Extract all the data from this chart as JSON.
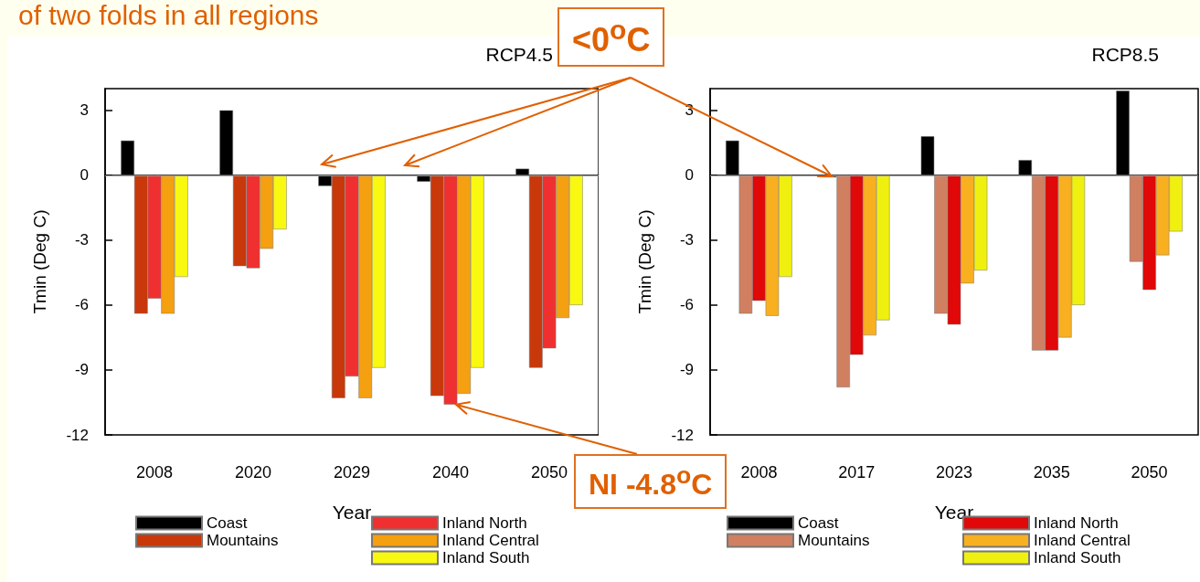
{
  "chart_data": [
    {
      "type": "bar",
      "title": "RCP4.5",
      "xlabel": "Year",
      "ylabel": "Tmin (Deg C)",
      "categories": [
        "2008",
        "2020",
        "2029",
        "2040",
        "2050"
      ],
      "series": [
        {
          "name": "Coast",
          "color": "#000000",
          "values": [
            1.6,
            3.0,
            -0.5,
            -0.3,
            0.3
          ]
        },
        {
          "name": "Mountains",
          "color": "#c8380a",
          "values": [
            -6.4,
            -4.2,
            -10.3,
            -10.2,
            -8.9
          ]
        },
        {
          "name": "Inland North",
          "color": "#f03030",
          "values": [
            -5.7,
            -4.3,
            -9.3,
            -10.6,
            -8.0
          ]
        },
        {
          "name": "Inland Central",
          "color": "#f5a010",
          "values": [
            -6.4,
            -3.4,
            -10.3,
            -10.1,
            -6.6
          ]
        },
        {
          "name": "Inland South",
          "color": "#f8f810",
          "values": [
            -4.7,
            -2.5,
            -8.9,
            -8.9,
            -6.0
          ]
        }
      ],
      "ylim": [
        -12,
        4
      ],
      "yticks": [
        -12,
        -9,
        -6,
        -3,
        0,
        3
      ],
      "ref_lines": [
        {
          "axis": "y",
          "value": 0,
          "color": "#999999"
        }
      ],
      "legend": "bottom",
      "annotations": [
        "of two folds in all regions",
        "<0$^{o}$C",
        {
          "text": "NI -4.8$^{o}$C",
          "x": "2040",
          "y": -10.6
        }
      ]
    },
    {
      "type": "bar",
      "title": "RCP8.5",
      "xlabel": "Year",
      "ylabel": "Tmin (Deg C)",
      "categories": [
        "2008",
        "2017",
        "2023",
        "2035",
        "2050"
      ],
      "series": [
        {
          "name": "Coast",
          "color": "#000000",
          "values": [
            1.6,
            -0.1,
            1.8,
            0.7,
            3.9
          ]
        },
        {
          "name": "Mountains",
          "color": "#d08060",
          "values": [
            -6.4,
            -9.8,
            -6.4,
            -8.1,
            -4.0
          ]
        },
        {
          "name": "Inland North",
          "color": "#e00808",
          "values": [
            -5.8,
            -8.3,
            -6.9,
            -8.1,
            -5.3
          ]
        },
        {
          "name": "Inland Central",
          "color": "#f8b020",
          "values": [
            -6.5,
            -7.4,
            -5.0,
            -7.5,
            -3.7
          ]
        },
        {
          "name": "Inland South",
          "color": "#f0f010",
          "values": [
            -4.7,
            -6.7,
            -4.4,
            -6.0,
            -2.6
          ]
        }
      ],
      "ylim": [
        -12,
        4
      ],
      "yticks": [
        -12,
        -9,
        -6,
        -3,
        0,
        3
      ],
      "ref_lines": [
        {
          "axis": "y",
          "value": 0,
          "color": "#999999"
        }
      ],
      "legend": "bottom"
    }
  ]
}
